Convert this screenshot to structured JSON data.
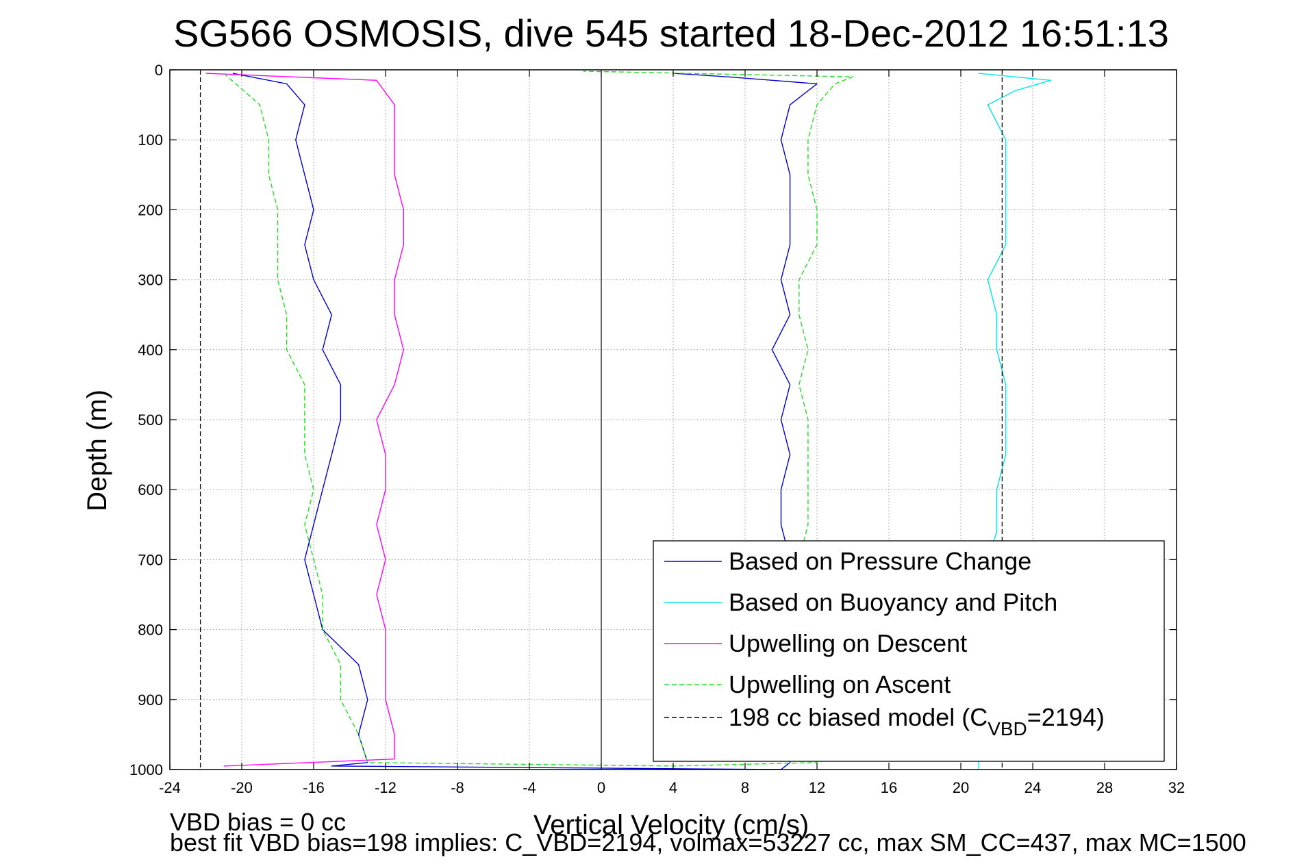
{
  "chart_data": {
    "type": "line",
    "title": "SG566 OSMOSIS, dive 545 started 18-Dec-2012 16:51:13",
    "xlabel": "Vertical Velocity (cm/s)",
    "ylabel": "Depth (m)",
    "xlim": [
      -24,
      32
    ],
    "ylim": [
      0,
      1000
    ],
    "y_reversed": true,
    "grid": true,
    "legend_position": "lower-right",
    "x_ticks": [
      "-24",
      "-20",
      "-16",
      "-12",
      "-8",
      "-4",
      "0",
      "4",
      "8",
      "12",
      "16",
      "20",
      "24",
      "28",
      "32"
    ],
    "y_ticks": [
      "0",
      "100",
      "200",
      "300",
      "400",
      "500",
      "600",
      "700",
      "800",
      "900",
      "1000"
    ],
    "series": [
      {
        "name": "Based on Pressure Change",
        "color": "#0000cc",
        "style": "solid",
        "points": [
          [
            -20.5,
            5
          ],
          [
            -17.5,
            20
          ],
          [
            -16.5,
            50
          ],
          [
            -17.0,
            100
          ],
          [
            -16.5,
            150
          ],
          [
            -16.0,
            200
          ],
          [
            -16.5,
            250
          ],
          [
            -16.0,
            300
          ],
          [
            -15.0,
            350
          ],
          [
            -15.5,
            400
          ],
          [
            -14.5,
            450
          ],
          [
            -14.5,
            500
          ],
          [
            -15.0,
            550
          ],
          [
            -15.5,
            600
          ],
          [
            -16.0,
            650
          ],
          [
            -16.5,
            700
          ],
          [
            -16.0,
            750
          ],
          [
            -15.5,
            800
          ],
          [
            -13.5,
            850
          ],
          [
            -13.0,
            900
          ],
          [
            -13.5,
            950
          ],
          [
            -13.0,
            990
          ],
          [
            -15.0,
            995
          ],
          [
            10.0,
            1000
          ],
          [
            10.5,
            990
          ],
          [
            10.5,
            900
          ],
          [
            10.5,
            700
          ],
          [
            10.0,
            650
          ],
          [
            10.0,
            600
          ],
          [
            10.5,
            550
          ],
          [
            10.0,
            500
          ],
          [
            10.5,
            450
          ],
          [
            9.5,
            400
          ],
          [
            10.5,
            350
          ],
          [
            10.0,
            300
          ],
          [
            10.5,
            250
          ],
          [
            10.5,
            200
          ],
          [
            10.5,
            150
          ],
          [
            10.0,
            100
          ],
          [
            10.5,
            50
          ],
          [
            12.0,
            20
          ],
          [
            7.0,
            10
          ],
          [
            4.0,
            5
          ]
        ]
      },
      {
        "name": "Based on Buoyancy and Pitch",
        "color": "#00e5e5",
        "style": "solid",
        "points": [
          [
            21.0,
            1000
          ],
          [
            21.0,
            990
          ],
          [
            21.0,
            900
          ],
          [
            21.5,
            800
          ],
          [
            21.5,
            700
          ],
          [
            22.0,
            660
          ],
          [
            22.0,
            600
          ],
          [
            22.5,
            550
          ],
          [
            22.5,
            500
          ],
          [
            22.5,
            450
          ],
          [
            22.0,
            400
          ],
          [
            22.0,
            350
          ],
          [
            21.5,
            300
          ],
          [
            22.5,
            250
          ],
          [
            22.5,
            200
          ],
          [
            22.5,
            150
          ],
          [
            22.5,
            100
          ],
          [
            21.5,
            50
          ],
          [
            23.0,
            30
          ],
          [
            25.0,
            15
          ],
          [
            21.0,
            5
          ]
        ]
      },
      {
        "name": "Upwelling on Descent",
        "color": "#ff00ff",
        "style": "solid",
        "points": [
          [
            -22.0,
            5
          ],
          [
            -12.5,
            15
          ],
          [
            -11.5,
            50
          ],
          [
            -11.5,
            100
          ],
          [
            -11.5,
            150
          ],
          [
            -11.0,
            200
          ],
          [
            -11.0,
            250
          ],
          [
            -11.5,
            300
          ],
          [
            -11.5,
            350
          ],
          [
            -11.0,
            400
          ],
          [
            -11.5,
            450
          ],
          [
            -12.5,
            500
          ],
          [
            -12.0,
            550
          ],
          [
            -12.0,
            600
          ],
          [
            -12.5,
            650
          ],
          [
            -12.0,
            700
          ],
          [
            -12.5,
            750
          ],
          [
            -12.0,
            800
          ],
          [
            -12.0,
            850
          ],
          [
            -12.0,
            900
          ],
          [
            -11.5,
            950
          ],
          [
            -11.5,
            985
          ],
          [
            -21.0,
            995
          ]
        ]
      },
      {
        "name": "Upwelling on Ascent",
        "color": "#22dd22",
        "style": "dashed",
        "points": [
          [
            -21.0,
            5
          ],
          [
            -19.0,
            50
          ],
          [
            -18.5,
            100
          ],
          [
            -18.5,
            150
          ],
          [
            -18.0,
            200
          ],
          [
            -18.0,
            250
          ],
          [
            -18.0,
            300
          ],
          [
            -17.5,
            350
          ],
          [
            -17.5,
            400
          ],
          [
            -16.5,
            450
          ],
          [
            -16.5,
            500
          ],
          [
            -16.5,
            550
          ],
          [
            -16.0,
            600
          ],
          [
            -16.5,
            650
          ],
          [
            -16.0,
            700
          ],
          [
            -15.5,
            750
          ],
          [
            -15.5,
            800
          ],
          [
            -14.5,
            850
          ],
          [
            -14.5,
            900
          ],
          [
            -13.5,
            950
          ],
          [
            -13.0,
            990
          ],
          [
            4.0,
            995
          ],
          [
            12.0,
            990
          ],
          [
            11.5,
            950
          ],
          [
            11.0,
            700
          ],
          [
            11.5,
            650
          ],
          [
            11.5,
            600
          ],
          [
            11.5,
            550
          ],
          [
            11.5,
            500
          ],
          [
            11.0,
            450
          ],
          [
            11.5,
            400
          ],
          [
            11.0,
            350
          ],
          [
            11.0,
            300
          ],
          [
            12.0,
            250
          ],
          [
            12.0,
            200
          ],
          [
            11.5,
            150
          ],
          [
            11.5,
            100
          ],
          [
            12.0,
            50
          ],
          [
            13.0,
            20
          ],
          [
            14.0,
            10
          ],
          [
            -1.0,
            2
          ]
        ]
      },
      {
        "name": "198 cc biased model (C_VBD=2194)",
        "color": "#000000",
        "style": "dashed",
        "segments": [
          [
            [
              -22.3,
              0
            ],
            [
              -22.3,
              1000
            ]
          ],
          [
            [
              22.3,
              0
            ],
            [
              22.3,
              1000
            ]
          ]
        ]
      }
    ],
    "legend": {
      "entries": [
        "Based on Pressure Change",
        "Based on Buoyancy and Pitch",
        "Upwelling on Descent",
        "Upwelling on Ascent",
        "198 cc biased model (C"
      ],
      "vbd_sub": "VBD",
      "vbd_tail": "=2194)"
    },
    "annotations": {
      "vbd_bias": "VBD bias = 0 cc",
      "best_fit": "best fit VBD bias=198 implies: C_VBD=2194, volmax=53227 cc, max SM_CC=437, max MC=1500"
    }
  }
}
